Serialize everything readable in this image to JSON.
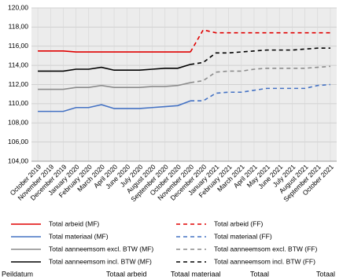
{
  "chart_data": {
    "type": "line",
    "categories": [
      "October 2019",
      "November 2019",
      "December 2019",
      "January 2020",
      "February 2020",
      "March 2020",
      "April 2020",
      "June 2020",
      "July 2020",
      "August 2020",
      "September 2020",
      "October 2020",
      "November 2020",
      "December 2020",
      "January 2021",
      "February 2021",
      "March 2021",
      "April 2021",
      "May 2021",
      "June 2021",
      "July 2021",
      "August 2021",
      "September 2021",
      "October 2021"
    ],
    "series": [
      {
        "name": "Total arbeid (MF)",
        "color": "#e00000",
        "dashed": false,
        "values": [
          115.5,
          115.5,
          115.5,
          115.4,
          115.4,
          115.4,
          115.4,
          115.4,
          115.4,
          115.4,
          115.4,
          115.4,
          115.4,
          null,
          null,
          null,
          null,
          null,
          null,
          null,
          null,
          null,
          null,
          null
        ]
      },
      {
        "name": "Total materiaal (MF)",
        "color": "#4472c4",
        "dashed": false,
        "values": [
          109.2,
          109.2,
          109.2,
          109.6,
          109.6,
          109.9,
          109.5,
          109.5,
          109.5,
          109.6,
          109.7,
          109.8,
          110.3,
          null,
          null,
          null,
          null,
          null,
          null,
          null,
          null,
          null,
          null,
          null
        ]
      },
      {
        "name": "Total aanneemsom excl. BTW (MF)",
        "color": "#8c8c8c",
        "dashed": false,
        "values": [
          111.5,
          111.5,
          111.5,
          111.7,
          111.7,
          111.9,
          111.7,
          111.7,
          111.7,
          111.8,
          111.8,
          111.9,
          112.2,
          null,
          null,
          null,
          null,
          null,
          null,
          null,
          null,
          null,
          null,
          null
        ]
      },
      {
        "name": "Total aanneemsom incl. BTW (MF)",
        "color": "#000000",
        "dashed": false,
        "values": [
          113.4,
          113.4,
          113.4,
          113.6,
          113.6,
          113.8,
          113.5,
          113.5,
          113.5,
          113.6,
          113.7,
          113.7,
          114.1,
          null,
          null,
          null,
          null,
          null,
          null,
          null,
          null,
          null,
          null,
          null
        ]
      },
      {
        "name": "Total arbeid (FF)",
        "color": "#e00000",
        "dashed": true,
        "values": [
          null,
          null,
          null,
          null,
          null,
          null,
          null,
          null,
          null,
          null,
          null,
          null,
          115.4,
          117.7,
          117.4,
          117.4,
          117.4,
          117.4,
          117.4,
          117.4,
          117.4,
          117.4,
          117.4,
          117.4
        ]
      },
      {
        "name": "Total materiaal (FF)",
        "color": "#4472c4",
        "dashed": true,
        "values": [
          null,
          null,
          null,
          null,
          null,
          null,
          null,
          null,
          null,
          null,
          null,
          null,
          110.3,
          110.3,
          111.1,
          111.2,
          111.2,
          111.4,
          111.6,
          111.6,
          111.6,
          111.6,
          111.9,
          112.0
        ]
      },
      {
        "name": "Total aanneemsom excl. BTW (FF)",
        "color": "#8c8c8c",
        "dashed": true,
        "values": [
          null,
          null,
          null,
          null,
          null,
          null,
          null,
          null,
          null,
          null,
          null,
          null,
          112.2,
          112.4,
          113.3,
          113.4,
          113.4,
          113.6,
          113.7,
          113.7,
          113.7,
          113.7,
          113.8,
          113.9
        ]
      },
      {
        "name": "Total aanneemsom incl. BTW (FF)",
        "color": "#000000",
        "dashed": true,
        "values": [
          null,
          null,
          null,
          null,
          null,
          null,
          null,
          null,
          null,
          null,
          null,
          null,
          114.1,
          114.3,
          115.3,
          115.3,
          115.4,
          115.5,
          115.6,
          115.6,
          115.6,
          115.7,
          115.8,
          115.8
        ]
      }
    ],
    "ylim": [
      104,
      120
    ],
    "yticks": [
      {
        "value": 104,
        "label": "104,00"
      },
      {
        "value": 106,
        "label": "106,00"
      },
      {
        "value": 108,
        "label": "108,00"
      },
      {
        "value": 110,
        "label": "110,00"
      },
      {
        "value": 112,
        "label": "112,00"
      },
      {
        "value": 114,
        "label": "114,00"
      },
      {
        "value": 116,
        "label": "116,00"
      },
      {
        "value": 118,
        "label": "118,00"
      },
      {
        "value": 120,
        "label": "120,00"
      }
    ],
    "grid": true
  },
  "table": {
    "headers": [
      "Peildatum",
      "Totaal  arbeid",
      "Totaal materiaal",
      "Totaal",
      "Totaal"
    ]
  }
}
